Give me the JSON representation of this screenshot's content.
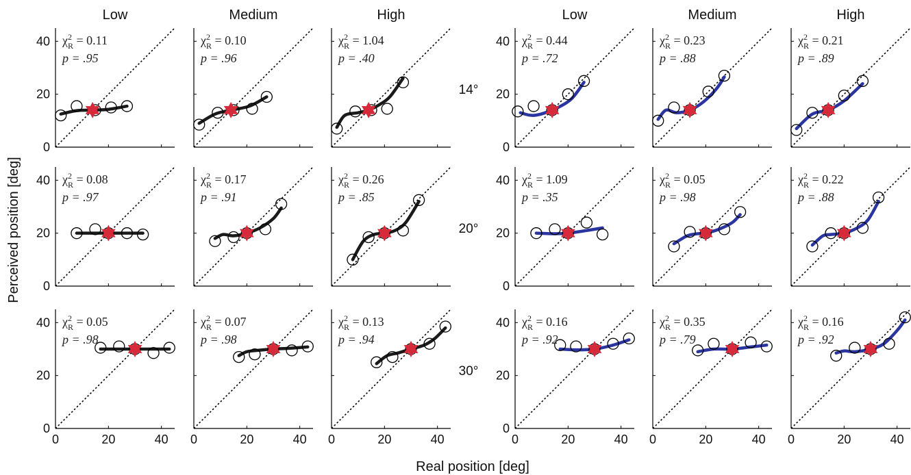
{
  "chart_data": {
    "type": "scatter",
    "xlabel": "Real position [deg]",
    "ylabel": "Perceived position [deg]",
    "xlim": [
      0,
      45
    ],
    "ylim": [
      0,
      45
    ],
    "x_ticks": [
      "0",
      "20",
      "40"
    ],
    "y_ticks": [
      "0",
      "20",
      "40"
    ],
    "column_headers": [
      "Low",
      "Medium",
      "High",
      "Low",
      "Medium",
      "High"
    ],
    "row_labels": [
      "14°",
      "20°",
      "30°"
    ],
    "chi_label": "χ",
    "chi_sup": "2",
    "chi_sub": "R",
    "colors": {
      "left_fit": "#1a1a1a",
      "right_fit": "#2b35a0",
      "star": "#d62a3a",
      "identity": "#000000"
    },
    "panels": [
      {
        "row": 0,
        "col": 0,
        "chi": "0.11",
        "p": ".95",
        "star": [
          14,
          14
        ],
        "points": [
          [
            2,
            12
          ],
          [
            8,
            15.5
          ],
          [
            15,
            14
          ],
          [
            21,
            15
          ],
          [
            27,
            15.5
          ]
        ],
        "fit": [
          [
            2,
            12.5
          ],
          [
            8,
            13.8
          ],
          [
            14,
            14
          ],
          [
            20,
            14.3
          ],
          [
            27,
            15.5
          ]
        ]
      },
      {
        "row": 0,
        "col": 1,
        "chi": "0.10",
        "p": ".96",
        "star": [
          14,
          14
        ],
        "points": [
          [
            2,
            8.5
          ],
          [
            9,
            13
          ],
          [
            15,
            14
          ],
          [
            22,
            14.5
          ],
          [
            27.5,
            19
          ]
        ],
        "fit": [
          [
            2,
            9
          ],
          [
            8,
            12.5
          ],
          [
            14,
            14
          ],
          [
            21,
            15.5
          ],
          [
            27.5,
            19
          ]
        ]
      },
      {
        "row": 0,
        "col": 2,
        "chi": "1.04",
        "p": ".40",
        "star": [
          14,
          14
        ],
        "points": [
          [
            2,
            7
          ],
          [
            9,
            13.5
          ],
          [
            15,
            14
          ],
          [
            21,
            14.5
          ],
          [
            27,
            24.5
          ]
        ],
        "fit": [
          [
            2,
            7.5
          ],
          [
            5,
            12
          ],
          [
            10,
            13
          ],
          [
            14,
            14
          ],
          [
            18,
            16
          ],
          [
            22,
            19
          ],
          [
            27,
            26
          ]
        ]
      },
      {
        "row": 0,
        "col": 3,
        "chi": "0.44",
        "p": ".72",
        "star": [
          14,
          14
        ],
        "points": [
          [
            1,
            13.5
          ],
          [
            7,
            15.5
          ],
          [
            14,
            14
          ],
          [
            20,
            20
          ],
          [
            26,
            25
          ]
        ],
        "fit": [
          [
            2,
            13
          ],
          [
            7,
            12
          ],
          [
            14,
            14
          ],
          [
            21,
            18
          ],
          [
            26,
            24.5
          ]
        ]
      },
      {
        "row": 0,
        "col": 4,
        "chi": "0.23",
        "p": ".88",
        "star": [
          14,
          14
        ],
        "points": [
          [
            2,
            10
          ],
          [
            8,
            15
          ],
          [
            14,
            14
          ],
          [
            21,
            21
          ],
          [
            27,
            27
          ]
        ],
        "fit": [
          [
            2,
            10.5
          ],
          [
            5,
            14
          ],
          [
            9,
            13
          ],
          [
            14,
            14
          ],
          [
            19,
            17
          ],
          [
            24,
            22
          ],
          [
            27,
            26.5
          ]
        ]
      },
      {
        "row": 0,
        "col": 5,
        "chi": "0.21",
        "p": ".89",
        "star": [
          14,
          14
        ],
        "points": [
          [
            2,
            6.5
          ],
          [
            8,
            13
          ],
          [
            14,
            14
          ],
          [
            20,
            19.5
          ],
          [
            27,
            25
          ]
        ],
        "fit": [
          [
            2,
            7
          ],
          [
            8,
            12.5
          ],
          [
            14,
            14
          ],
          [
            20,
            17.5
          ],
          [
            27,
            24
          ]
        ]
      },
      {
        "row": 1,
        "col": 0,
        "chi": "0.08",
        "p": ".97",
        "star": [
          20,
          20
        ],
        "points": [
          [
            8,
            20
          ],
          [
            15,
            21.5
          ],
          [
            20,
            20
          ],
          [
            27,
            20
          ],
          [
            33,
            19.5
          ]
        ],
        "fit": [
          [
            8,
            20
          ],
          [
            20,
            20
          ],
          [
            33,
            20
          ]
        ]
      },
      {
        "row": 1,
        "col": 1,
        "chi": "0.17",
        "p": ".91",
        "star": [
          20,
          20
        ],
        "points": [
          [
            8,
            17
          ],
          [
            15,
            18.5
          ],
          [
            20,
            20
          ],
          [
            27,
            21.5
          ],
          [
            33,
            31
          ]
        ],
        "fit": [
          [
            8,
            18
          ],
          [
            11,
            19.5
          ],
          [
            15,
            19
          ],
          [
            20,
            20
          ],
          [
            25,
            22
          ],
          [
            30,
            25.5
          ],
          [
            33,
            29.5
          ]
        ]
      },
      {
        "row": 1,
        "col": 2,
        "chi": "0.26",
        "p": ".85",
        "star": [
          20,
          20
        ],
        "points": [
          [
            8,
            10
          ],
          [
            14,
            18.5
          ],
          [
            20,
            20
          ],
          [
            27,
            21
          ],
          [
            33,
            32.5
          ]
        ],
        "fit": [
          [
            8,
            10
          ],
          [
            12,
            17
          ],
          [
            16,
            19.5
          ],
          [
            20,
            20
          ],
          [
            24,
            21
          ],
          [
            28,
            24
          ],
          [
            33,
            32
          ]
        ]
      },
      {
        "row": 1,
        "col": 3,
        "chi": "1.09",
        "p": ".35",
        "star": [
          20,
          20
        ],
        "points": [
          [
            8,
            20
          ],
          [
            15,
            21.5
          ],
          [
            20,
            20
          ],
          [
            27,
            24
          ],
          [
            33,
            19.5
          ]
        ],
        "fit": [
          [
            8,
            20
          ],
          [
            15,
            19.8
          ],
          [
            20,
            20
          ],
          [
            27,
            21
          ],
          [
            33,
            22
          ]
        ]
      },
      {
        "row": 1,
        "col": 4,
        "chi": "0.05",
        "p": ".98",
        "star": [
          20,
          20
        ],
        "points": [
          [
            8,
            15
          ],
          [
            14,
            20.5
          ],
          [
            20,
            20
          ],
          [
            27,
            21.5
          ],
          [
            33,
            28
          ]
        ],
        "fit": [
          [
            8,
            16
          ],
          [
            13,
            19
          ],
          [
            17,
            19.8
          ],
          [
            20,
            20
          ],
          [
            25,
            21.5
          ],
          [
            30,
            24
          ],
          [
            33,
            27
          ]
        ]
      },
      {
        "row": 1,
        "col": 5,
        "chi": "0.22",
        "p": ".88",
        "star": [
          20,
          20
        ],
        "points": [
          [
            8,
            15
          ],
          [
            15,
            20
          ],
          [
            20,
            20
          ],
          [
            27,
            22
          ],
          [
            33,
            33.5
          ]
        ],
        "fit": [
          [
            8,
            15.5
          ],
          [
            12,
            19
          ],
          [
            15,
            19.5
          ],
          [
            20,
            20
          ],
          [
            25,
            22
          ],
          [
            29,
            25
          ],
          [
            33,
            32
          ]
        ]
      },
      {
        "row": 2,
        "col": 0,
        "chi": "0.05",
        "p": ".98",
        "star": [
          30,
          30
        ],
        "points": [
          [
            17,
            30.5
          ],
          [
            24,
            31
          ],
          [
            30,
            30
          ],
          [
            37,
            28.5
          ],
          [
            43,
            30.5
          ]
        ],
        "fit": [
          [
            17,
            30
          ],
          [
            30,
            30
          ],
          [
            43,
            30
          ]
        ]
      },
      {
        "row": 2,
        "col": 1,
        "chi": "0.07",
        "p": ".98",
        "star": [
          30,
          30
        ],
        "points": [
          [
            17,
            27
          ],
          [
            23,
            28
          ],
          [
            30,
            30
          ],
          [
            37,
            29.5
          ],
          [
            43,
            31
          ]
        ],
        "fit": [
          [
            17,
            27.5
          ],
          [
            20,
            29
          ],
          [
            24,
            29.5
          ],
          [
            30,
            30
          ],
          [
            36,
            30.3
          ],
          [
            43,
            30.8
          ]
        ]
      },
      {
        "row": 2,
        "col": 2,
        "chi": "0.13",
        "p": ".94",
        "star": [
          30,
          30
        ],
        "points": [
          [
            17,
            25
          ],
          [
            23,
            27
          ],
          [
            30,
            30
          ],
          [
            37,
            32
          ],
          [
            43,
            38.5
          ]
        ],
        "fit": [
          [
            17,
            24.5
          ],
          [
            21,
            27.5
          ],
          [
            25,
            28.5
          ],
          [
            30,
            30
          ],
          [
            35,
            31.5
          ],
          [
            39,
            34
          ],
          [
            43,
            38
          ]
        ]
      },
      {
        "row": 2,
        "col": 3,
        "chi": "0.16",
        "p": ".92",
        "star": [
          30,
          30
        ],
        "points": [
          [
            17,
            31.5
          ],
          [
            23,
            31
          ],
          [
            30,
            30
          ],
          [
            37,
            32
          ],
          [
            43,
            34
          ]
        ],
        "fit": [
          [
            17,
            30
          ],
          [
            23,
            29.7
          ],
          [
            30,
            30
          ],
          [
            37,
            31.5
          ],
          [
            43,
            33.5
          ]
        ]
      },
      {
        "row": 2,
        "col": 4,
        "chi": "0.35",
        "p": ".79",
        "star": [
          30,
          30
        ],
        "points": [
          [
            17,
            29.5
          ],
          [
            23,
            32
          ],
          [
            30,
            30
          ],
          [
            37,
            32.5
          ],
          [
            43,
            31
          ]
        ],
        "fit": [
          [
            17,
            29
          ],
          [
            23,
            30
          ],
          [
            30,
            30
          ],
          [
            37,
            30.8
          ],
          [
            43,
            31.5
          ]
        ]
      },
      {
        "row": 2,
        "col": 5,
        "chi": "0.16",
        "p": ".92",
        "star": [
          30,
          30
        ],
        "points": [
          [
            17,
            27.5
          ],
          [
            24,
            30.5
          ],
          [
            30,
            30
          ],
          [
            37,
            32
          ],
          [
            43,
            42
          ]
        ],
        "fit": [
          [
            17,
            28.5
          ],
          [
            20,
            29.3
          ],
          [
            24,
            29
          ],
          [
            30,
            30
          ],
          [
            35,
            32
          ],
          [
            40,
            37
          ],
          [
            43,
            41
          ]
        ]
      }
    ]
  }
}
